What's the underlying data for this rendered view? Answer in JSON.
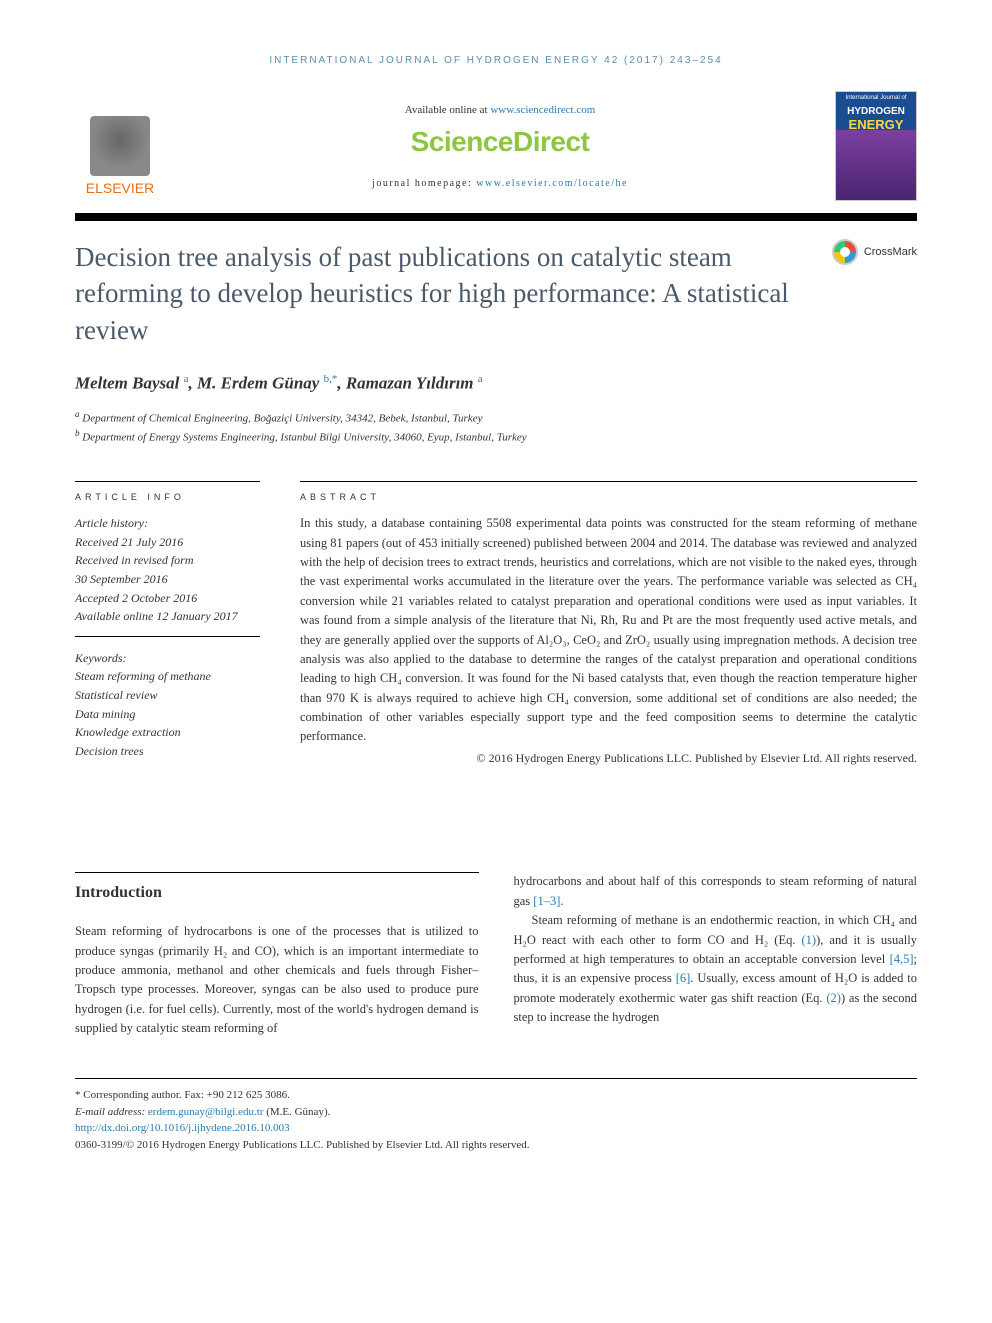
{
  "running_head": "INTERNATIONAL JOURNAL OF HYDROGEN ENERGY 42 (2017) 243–254",
  "header": {
    "available_prefix": "Available online at ",
    "available_link": "www.sciencedirect.com",
    "sd_logo": "ScienceDirect",
    "homepage_prefix": "journal homepage: ",
    "homepage_link": "www.elsevier.com/locate/he",
    "elsevier_label": "ELSEVIER",
    "cover": {
      "top": "International Journal of",
      "hydrogen": "HYDROGEN",
      "energy": "ENERGY"
    }
  },
  "crossmark_label": "CrossMark",
  "title": "Decision tree analysis of past publications on catalytic steam reforming to develop heuristics for high performance: A statistical review",
  "authors": {
    "a1_name": "Meltem Baysal",
    "a1_aff": "a",
    "a2_name": "M. Erdem Günay",
    "a2_aff": "b,*",
    "a3_name": "Ramazan Yıldırım",
    "a3_aff": "a"
  },
  "affiliations": {
    "a": "Department of Chemical Engineering, Boğaziçi University, 34342, Bebek, Istanbul, Turkey",
    "b": "Department of Energy Systems Engineering, Istanbul Bilgi University, 34060, Eyup, Istanbul, Turkey"
  },
  "article_info_head": "ARTICLE INFO",
  "abstract_head": "ABSTRACT",
  "history_label": "Article history:",
  "history": {
    "l1": "Received 21 July 2016",
    "l2": "Received in revised form",
    "l3": "30 September 2016",
    "l4": "Accepted 2 October 2016",
    "l5": "Available online 12 January 2017"
  },
  "keywords_label": "Keywords:",
  "keywords": {
    "k1": "Steam reforming of methane",
    "k2": "Statistical review",
    "k3": "Data mining",
    "k4": "Knowledge extraction",
    "k5": "Decision trees"
  },
  "abstract": "In this study, a database containing 5508 experimental data points was constructed for the steam reforming of methane using 81 papers (out of 453 initially screened) published between 2004 and 2014. The database was reviewed and analyzed with the help of decision trees to extract trends, heuristics and correlations, which are not visible to the naked eyes, through the vast experimental works accumulated in the literature over the years. The performance variable was selected as CH₄ conversion while 21 variables related to catalyst preparation and operational conditions were used as input variables. It was found from a simple analysis of the literature that Ni, Rh, Ru and Pt are the most frequently used active metals, and they are generally applied over the supports of Al₂O₃, CeO₂ and ZrO₂ usually using impregnation methods. A decision tree analysis was also applied to the database to determine the ranges of the catalyst preparation and operational conditions leading to high CH₄ conversion. It was found for the Ni based catalysts that, even though the reaction temperature higher than 970 K is always required to achieve high CH₄ conversion, some additional set of conditions are also needed; the combination of other variables especially support type and the feed composition seems to determine the catalytic performance.",
  "copyright": "© 2016 Hydrogen Energy Publications LLC. Published by Elsevier Ltd. All rights reserved.",
  "intro_head": "Introduction",
  "intro_col1": "Steam reforming of hydrocarbons is one of the processes that is utilized to produce syngas (primarily H₂ and CO), which is an important intermediate to produce ammonia, methanol and other chemicals and fuels through Fisher–Tropsch type processes. Moreover, syngas can be also used to produce pure hydrogen (i.e. for fuel cells). Currently, most of the world's hydrogen demand is supplied by catalytic steam reforming of",
  "intro_col2_p1a": "hydrocarbons and about half of this corresponds to steam reforming of natural gas ",
  "intro_col2_p1_ref": "[1–3]",
  "intro_col2_p1b": ".",
  "intro_col2_p2a": "Steam reforming of methane is an endothermic reaction, in which CH₄ and H₂O react with each other to form CO and H₂ (Eq. ",
  "intro_col2_p2_ref1": "(1)",
  "intro_col2_p2b": "), and it is usually performed at high temperatures to obtain an acceptable conversion level ",
  "intro_col2_p2_ref2": "[4,5]",
  "intro_col2_p2c": "; thus, it is an expensive process ",
  "intro_col2_p2_ref3": "[6]",
  "intro_col2_p2d": ". Usually, excess amount of H₂O is added to promote moderately exothermic water gas shift reaction (Eq. ",
  "intro_col2_p2_ref4": "(2)",
  "intro_col2_p2e": ") as the second step to increase the hydrogen",
  "footer": {
    "corr": "* Corresponding author. Fax: +90 212 625 3086.",
    "email_label": "E-mail address: ",
    "email": "erdem.gunay@bilgi.edu.tr",
    "email_suffix": " (M.E. Günay).",
    "doi": "http://dx.doi.org/10.1016/j.ijhydene.2016.10.003",
    "issn": "0360-3199/© 2016 Hydrogen Energy Publications LLC. Published by Elsevier Ltd. All rights reserved."
  }
}
